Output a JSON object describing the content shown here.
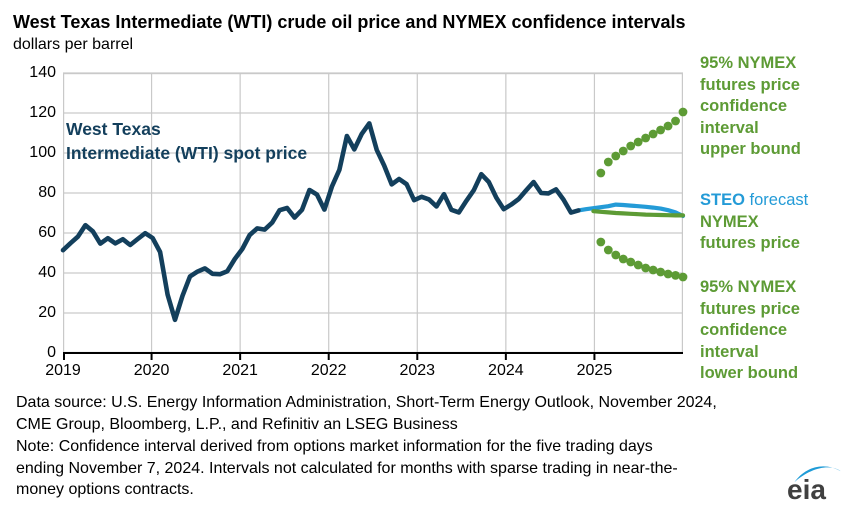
{
  "title": "West Texas Intermediate (WTI) crude oil price and NYMEX confidence intervals",
  "subtitle": "dollars per barrel",
  "colors": {
    "navy": "#133f5c",
    "blue": "#249bd7",
    "green": "#5d9b35",
    "grid": "#c9c9c9",
    "axis": "#000000",
    "logo_gray": "#404040",
    "logo_blue": "#1e9bd7"
  },
  "chart_data": {
    "type": "line",
    "title": "West Texas Intermediate (WTI) crude oil price and NYMEX confidence intervals",
    "ylabel": "dollars per barrel",
    "ylim": [
      0,
      140
    ],
    "y_ticks": [
      0,
      20,
      40,
      60,
      80,
      100,
      120,
      140
    ],
    "x_tick_labels": [
      "2019",
      "2020",
      "2021",
      "2022",
      "2023",
      "2024",
      "2025"
    ],
    "x_range_months": 83,
    "grid": true,
    "series": [
      {
        "id": "wti-spot",
        "name": "West Texas Intermediate (WTI) spot price",
        "color": "navy",
        "style": "line",
        "width": 4.6,
        "start_month": "2019-01",
        "values": [
          51.4,
          54.9,
          58.2,
          63.9,
          60.8,
          54.7,
          57.4,
          54.8,
          56.9,
          54.0,
          57.0,
          59.9,
          57.5,
          50.5,
          29.2,
          16.6,
          28.6,
          38.3,
          40.7,
          42.3,
          39.6,
          39.4,
          40.9,
          47.0,
          52.0,
          59.0,
          62.3,
          61.7,
          65.2,
          71.4,
          72.5,
          67.7,
          71.6,
          81.5,
          79.2,
          71.7,
          83.2,
          91.6,
          108.5,
          101.8,
          109.6,
          114.8,
          101.6,
          93.7,
          84.3,
          87.0,
          84.4,
          76.4,
          78.1,
          76.8,
          73.3,
          79.4,
          71.6,
          70.3,
          76.1,
          81.4,
          89.4,
          85.5,
          77.7,
          71.9,
          74.2,
          77.0,
          81.3,
          85.5,
          80.0,
          79.8,
          81.8,
          76.7,
          70.2,
          71.3
        ]
      },
      {
        "id": "steo-forecast",
        "name": "STEO forecast",
        "color": "blue",
        "style": "line",
        "width": 4.2,
        "start_month": "2024-10",
        "values": [
          71.3,
          71.9,
          72.4,
          72.9,
          73.4,
          74.2,
          74.0,
          73.7,
          73.4,
          73.1,
          72.7,
          72.2,
          71.4,
          70.3,
          68.5
        ]
      },
      {
        "id": "nymex-futures",
        "name": "NYMEX futures price",
        "color": "green",
        "style": "line",
        "width": 4.2,
        "start_month": "2024-12",
        "values": [
          70.9,
          70.6,
          70.3,
          70.0,
          69.8,
          69.6,
          69.4,
          69.2,
          69.1,
          69.0,
          68.9,
          68.8,
          68.8
        ]
      },
      {
        "id": "ci-upper",
        "name": "95% NYMEX futures price confidence interval upper bound",
        "color": "green",
        "style": "dots",
        "start_month": "2025-01",
        "values": [
          90,
          95.5,
          98.5,
          101,
          103.5,
          105.5,
          107.5,
          109.5,
          111.5,
          113.5,
          116,
          120.5
        ]
      },
      {
        "id": "ci-lower",
        "name": "95% NYMEX futures price confidence interval lower bound",
        "color": "green",
        "style": "dots",
        "start_month": "2025-01",
        "values": [
          55.5,
          51.5,
          49,
          47,
          45.5,
          44,
          42.5,
          41.5,
          40.5,
          39.5,
          38.8,
          38
        ]
      }
    ]
  },
  "annotations": {
    "spot_label_lines": [
      "West Texas",
      "Intermediate (WTI) spot price"
    ],
    "upper_label_lines": [
      "95% NYMEX",
      "futures price",
      "confidence",
      "interval",
      "upper bound"
    ],
    "steo_label": {
      "bold": "STEO",
      "rest": " forecast",
      "line2": "NYMEX",
      "line3": "futures price"
    },
    "lower_label_lines": [
      "95% NYMEX",
      "futures price",
      "confidence",
      "interval",
      "lower bound"
    ]
  },
  "footer": {
    "datasource_lines": [
      "Data source: U.S. Energy Information Administration, Short-Term Energy Outlook, November 2024,",
      "CME Group, Bloomberg, L.P., and Refinitiv an LSEG Business"
    ],
    "note_lines": [
      "Note: Confidence interval derived from options market information for the five trading days",
      "ending November 7, 2024. Intervals not calculated for months with sparse trading in near-the-",
      "money options contracts."
    ],
    "logo_text": "eia"
  }
}
